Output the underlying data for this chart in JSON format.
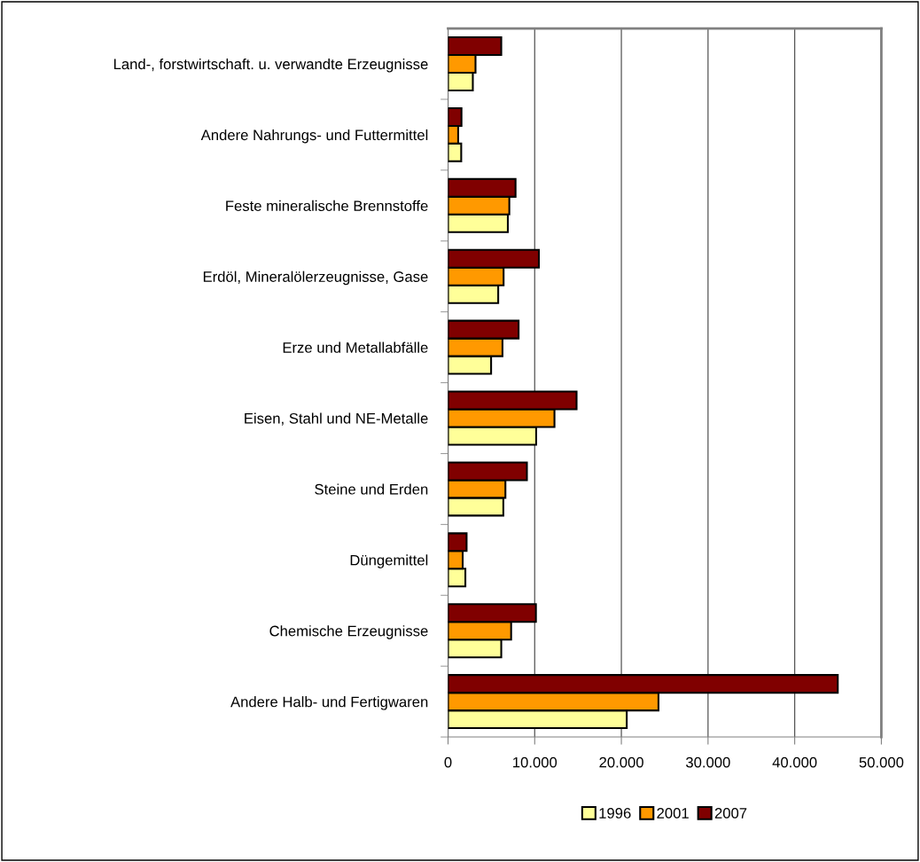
{
  "chart_data": {
    "type": "bar",
    "orientation": "horizontal",
    "categories": [
      "Land-, forstwirtschaft. u. verwandte Erzeugnisse",
      "Andere Nahrungs- und Futtermittel",
      "Feste mineralische Brennstoffe",
      "Erdöl, Mineralölerzeugnisse, Gase",
      "Erze und Metallabfälle",
      "Eisen, Stahl und NE-Metalle",
      "Steine und Erden",
      "Düngemittel",
      "Chemische Erzeugnisse",
      "Andere Halb- und Fertigwaren"
    ],
    "series": [
      {
        "name": "1996",
        "color": "#ffff99",
        "values": [
          2860,
          1520,
          6900,
          5790,
          4970,
          10170,
          6380,
          2000,
          6140,
          20620
        ]
      },
      {
        "name": "2001",
        "color": "#ff9900",
        "values": [
          3170,
          1170,
          7070,
          6410,
          6280,
          12280,
          6620,
          1690,
          7280,
          24280
        ]
      },
      {
        "name": "2007",
        "color": "#800000",
        "values": [
          6140,
          1550,
          7790,
          10480,
          8140,
          14830,
          9100,
          2140,
          10140,
          44970
        ]
      }
    ],
    "xlim": [
      0,
      50000
    ],
    "xticks": [
      0,
      {
        "value": 10000,
        "label": "10.000"
      },
      {
        "value": 20000,
        "label": "20.000"
      },
      {
        "value": 30000,
        "label": "30.000"
      },
      {
        "value": 40000,
        "label": "40.000"
      },
      {
        "value": 50000,
        "label": "50.000"
      }
    ],
    "grid": "x",
    "legend": "bottom"
  }
}
